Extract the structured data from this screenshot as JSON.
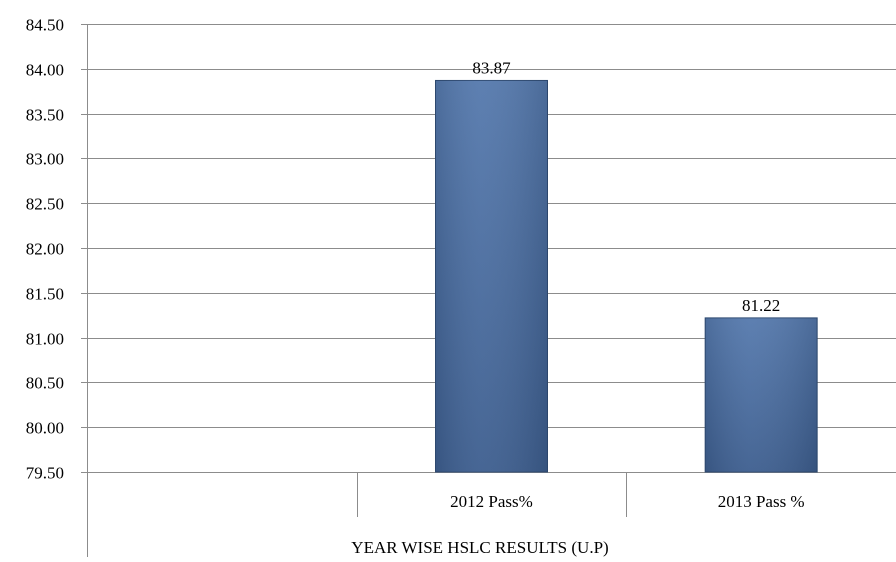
{
  "chart_data": {
    "type": "bar",
    "categories": [
      "",
      "2012 Pass%",
      "2013 Pass %"
    ],
    "values": [
      null,
      83.87,
      81.22
    ],
    "value_labels": [
      "",
      "83.87",
      "81.22"
    ],
    "title": "",
    "xlabel": "YEAR WISE HSLC RESULTS (U.P)",
    "ylabel": "",
    "ylim": [
      79.5,
      84.5
    ],
    "y_ticks": [
      "79.50",
      "80.00",
      "80.50",
      "81.00",
      "81.50",
      "82.00",
      "82.50",
      "83.00",
      "83.50",
      "84.00",
      "84.50"
    ],
    "grid": true,
    "legend": "none",
    "bar_color": "#4a6fa5",
    "bar_edge_color": "#2f4b73"
  }
}
